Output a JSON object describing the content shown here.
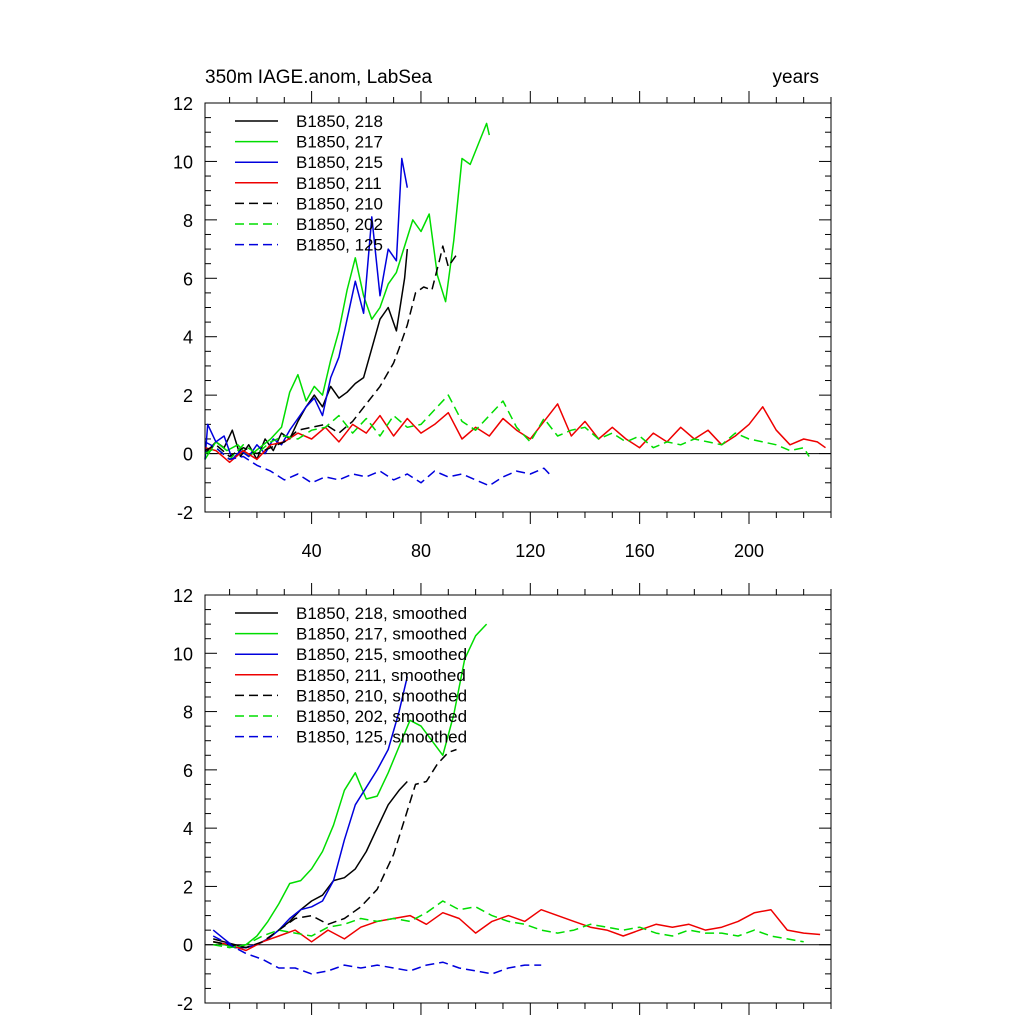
{
  "title": "350m IAGE.anom, LabSea",
  "units_label": "years",
  "colors": {
    "black": "#000000",
    "green": "#00dd00",
    "blue": "#0000dd",
    "red": "#ee0000"
  },
  "chart_data": [
    {
      "type": "line",
      "name": "raw",
      "title": "350m IAGE.anom, LabSea",
      "right_title": "years",
      "xlabel": "",
      "ylabel": "",
      "xlim": [
        1,
        230
      ],
      "ylim": [
        -2,
        12
      ],
      "xticks": [
        40,
        80,
        120,
        160,
        200
      ],
      "xtick_labels": [
        "40",
        "80",
        "120",
        "160",
        "200"
      ],
      "yticks": [
        -2,
        0,
        2,
        4,
        6,
        8,
        10,
        12
      ],
      "ytick_labels": [
        "-2",
        "0",
        "2",
        "4",
        "6",
        "8",
        "10",
        "12"
      ],
      "legend_position": "top-left",
      "series": [
        {
          "name": "B1850, 218",
          "color": "#000000",
          "dash": "solid",
          "x": [
            1,
            5,
            8,
            11,
            14,
            17,
            20,
            23,
            26,
            29,
            32,
            35,
            38,
            41,
            44,
            47,
            50,
            53,
            56,
            59,
            62,
            65,
            68,
            71,
            74,
            75
          ],
          "y": [
            0.0,
            0.4,
            0.2,
            0.8,
            -0.1,
            0.3,
            -0.2,
            0.5,
            0.1,
            0.7,
            0.5,
            1.1,
            1.6,
            2.0,
            1.6,
            2.3,
            1.9,
            2.1,
            2.4,
            2.6,
            3.6,
            4.6,
            5.0,
            4.2,
            6.0,
            7.0
          ]
        },
        {
          "name": "B1850, 217",
          "color": "#00dd00",
          "dash": "solid",
          "x": [
            1,
            5,
            9,
            13,
            17,
            21,
            25,
            29,
            32,
            35,
            38,
            41,
            44,
            47,
            50,
            53,
            56,
            59,
            62,
            65,
            68,
            71,
            74,
            77,
            80,
            83,
            86,
            89,
            92,
            95,
            98,
            101,
            104,
            105
          ],
          "y": [
            -0.2,
            0.4,
            0.1,
            0.3,
            -0.1,
            0.2,
            0.5,
            0.9,
            2.1,
            2.7,
            1.8,
            2.3,
            2.0,
            3.2,
            4.2,
            5.6,
            6.7,
            5.4,
            4.6,
            5.0,
            5.8,
            6.2,
            7.1,
            8.0,
            7.6,
            8.2,
            6.1,
            5.2,
            7.3,
            10.1,
            9.9,
            10.6,
            11.3,
            10.9
          ]
        },
        {
          "name": "B1850, 215",
          "color": "#0000dd",
          "dash": "solid",
          "x": [
            1,
            2,
            5,
            8,
            11,
            14,
            17,
            20,
            23,
            26,
            29,
            32,
            35,
            38,
            41,
            44,
            47,
            50,
            53,
            56,
            59,
            62,
            65,
            68,
            71,
            73,
            75
          ],
          "y": [
            -0.2,
            1.0,
            0.4,
            0.6,
            -0.2,
            0.1,
            -0.1,
            0.3,
            0.0,
            0.5,
            0.3,
            0.8,
            1.2,
            1.6,
            1.9,
            1.3,
            2.6,
            3.3,
            4.6,
            5.9,
            4.8,
            8.1,
            5.4,
            7.0,
            6.6,
            10.1,
            9.1
          ]
        },
        {
          "name": "B1850, 211",
          "color": "#ee0000",
          "dash": "solid",
          "x": [
            1,
            5,
            10,
            15,
            20,
            25,
            30,
            35,
            40,
            45,
            50,
            55,
            60,
            65,
            70,
            75,
            80,
            85,
            90,
            95,
            100,
            105,
            110,
            115,
            120,
            125,
            130,
            135,
            140,
            145,
            150,
            155,
            160,
            165,
            170,
            175,
            180,
            185,
            190,
            195,
            200,
            205,
            210,
            215,
            220,
            225,
            228
          ],
          "y": [
            0.2,
            0.1,
            -0.3,
            0.1,
            -0.2,
            0.3,
            0.4,
            0.7,
            0.5,
            0.9,
            0.4,
            1.0,
            0.7,
            1.3,
            0.6,
            1.2,
            0.7,
            1.0,
            1.4,
            0.5,
            0.9,
            0.6,
            1.2,
            0.8,
            0.5,
            1.1,
            1.7,
            0.6,
            1.1,
            0.5,
            0.9,
            0.5,
            0.2,
            0.7,
            0.4,
            0.9,
            0.5,
            0.8,
            0.3,
            0.6,
            1.0,
            1.6,
            0.8,
            0.3,
            0.5,
            0.4,
            0.2
          ]
        },
        {
          "name": "B1850, 210",
          "color": "#000000",
          "dash": "dashed",
          "x": [
            1,
            5,
            10,
            15,
            20,
            25,
            30,
            35,
            40,
            45,
            50,
            55,
            60,
            65,
            70,
            72,
            75,
            78,
            81,
            84,
            87,
            88,
            90,
            93
          ],
          "y": [
            0.1,
            0.3,
            -0.1,
            0.2,
            0.0,
            0.2,
            0.4,
            0.8,
            0.9,
            1.0,
            0.7,
            1.1,
            1.7,
            2.3,
            3.1,
            3.6,
            4.4,
            5.5,
            5.7,
            5.6,
            6.7,
            7.1,
            6.4,
            6.8
          ]
        },
        {
          "name": "B1850, 202",
          "color": "#00dd00",
          "dash": "dashed",
          "x": [
            1,
            5,
            10,
            15,
            20,
            25,
            30,
            35,
            40,
            45,
            50,
            55,
            60,
            65,
            70,
            75,
            80,
            85,
            90,
            95,
            100,
            105,
            110,
            115,
            120,
            125,
            130,
            135,
            140,
            145,
            150,
            155,
            160,
            165,
            170,
            175,
            180,
            185,
            190,
            195,
            200,
            205,
            210,
            215,
            220,
            222
          ],
          "y": [
            0.0,
            0.2,
            -0.2,
            0.3,
            0.0,
            0.4,
            0.6,
            0.5,
            0.8,
            0.9,
            1.3,
            0.7,
            1.2,
            0.6,
            1.3,
            0.9,
            1.0,
            1.5,
            2.0,
            1.1,
            0.8,
            1.3,
            1.8,
            0.9,
            0.4,
            1.2,
            0.6,
            0.8,
            0.9,
            0.5,
            0.7,
            0.4,
            0.6,
            0.2,
            0.4,
            0.3,
            0.5,
            0.4,
            0.3,
            0.7,
            0.5,
            0.4,
            0.3,
            0.1,
            0.2,
            -0.1
          ]
        },
        {
          "name": "B1850, 125",
          "color": "#0000dd",
          "dash": "dashed",
          "x": [
            1,
            5,
            10,
            15,
            20,
            25,
            30,
            35,
            40,
            45,
            50,
            55,
            60,
            65,
            70,
            75,
            80,
            85,
            90,
            95,
            100,
            105,
            110,
            115,
            120,
            125,
            127
          ],
          "y": [
            0.4,
            0.2,
            -0.2,
            -0.1,
            -0.4,
            -0.6,
            -0.9,
            -0.7,
            -1.0,
            -0.8,
            -0.9,
            -0.7,
            -0.8,
            -0.6,
            -0.9,
            -0.7,
            -1.0,
            -0.6,
            -0.8,
            -0.7,
            -0.9,
            -1.1,
            -0.8,
            -0.6,
            -0.7,
            -0.5,
            -0.7
          ]
        }
      ]
    },
    {
      "type": "line",
      "name": "smoothed",
      "title": "",
      "xlabel": "",
      "ylabel": "",
      "xlim": [
        1,
        230
      ],
      "ylim": [
        -2,
        12
      ],
      "xticks": [
        40,
        80,
        120,
        160,
        200
      ],
      "xtick_labels": [
        "",
        "",
        "",
        "",
        ""
      ],
      "yticks": [
        -2,
        0,
        2,
        4,
        6,
        8,
        10,
        12
      ],
      "ytick_labels": [
        "-2",
        "0",
        "2",
        "4",
        "6",
        "8",
        "10",
        "12"
      ],
      "legend_position": "top-left",
      "series": [
        {
          "name": "B1850, 218, smoothed",
          "color": "#000000",
          "dash": "solid",
          "x": [
            4,
            8,
            12,
            16,
            20,
            24,
            28,
            32,
            36,
            40,
            44,
            48,
            52,
            56,
            60,
            64,
            68,
            72,
            75
          ],
          "y": [
            0.2,
            0.1,
            0.0,
            -0.1,
            0.0,
            0.2,
            0.5,
            0.8,
            1.2,
            1.5,
            1.7,
            2.2,
            2.3,
            2.6,
            3.2,
            4.0,
            4.8,
            5.3,
            5.6
          ]
        },
        {
          "name": "B1850, 217, smoothed",
          "color": "#00dd00",
          "dash": "solid",
          "x": [
            4,
            8,
            12,
            16,
            20,
            24,
            28,
            32,
            36,
            40,
            44,
            48,
            52,
            56,
            60,
            64,
            68,
            72,
            76,
            80,
            84,
            88,
            92,
            96,
            100,
            104
          ],
          "y": [
            0.1,
            0.0,
            -0.1,
            0.0,
            0.3,
            0.8,
            1.4,
            2.1,
            2.2,
            2.6,
            3.2,
            4.1,
            5.3,
            5.9,
            5.0,
            5.1,
            5.9,
            6.8,
            7.7,
            7.5,
            7.0,
            6.5,
            7.9,
            9.8,
            10.6,
            11.0
          ]
        },
        {
          "name": "B1850, 215, smoothed",
          "color": "#0000dd",
          "dash": "solid",
          "x": [
            4,
            8,
            12,
            16,
            20,
            24,
            28,
            32,
            36,
            40,
            44,
            48,
            52,
            56,
            60,
            64,
            68,
            72,
            75
          ],
          "y": [
            0.5,
            0.2,
            -0.1,
            -0.1,
            0.0,
            0.2,
            0.5,
            0.9,
            1.2,
            1.3,
            1.5,
            2.2,
            3.6,
            4.8,
            5.4,
            6.0,
            6.7,
            8.0,
            9.2
          ]
        },
        {
          "name": "B1850, 211, smoothed",
          "color": "#ee0000",
          "dash": "solid",
          "x": [
            4,
            10,
            16,
            22,
            28,
            34,
            40,
            46,
            52,
            58,
            64,
            70,
            76,
            82,
            88,
            94,
            100,
            106,
            112,
            118,
            124,
            130,
            136,
            142,
            148,
            154,
            160,
            166,
            172,
            178,
            184,
            190,
            196,
            202,
            208,
            214,
            220,
            226
          ],
          "y": [
            0.1,
            0.0,
            -0.2,
            0.1,
            0.3,
            0.5,
            0.1,
            0.5,
            0.2,
            0.6,
            0.8,
            0.9,
            1.0,
            0.7,
            1.1,
            0.9,
            0.4,
            0.8,
            1.0,
            0.8,
            1.2,
            1.0,
            0.8,
            0.6,
            0.5,
            0.3,
            0.5,
            0.7,
            0.6,
            0.7,
            0.5,
            0.6,
            0.8,
            1.1,
            1.2,
            0.5,
            0.4,
            0.35
          ]
        },
        {
          "name": "B1850, 210, smoothed",
          "color": "#000000",
          "dash": "dashed",
          "x": [
            4,
            10,
            16,
            22,
            28,
            34,
            40,
            46,
            52,
            58,
            64,
            70,
            74,
            78,
            82,
            86,
            90,
            93
          ],
          "y": [
            0.1,
            0.0,
            -0.1,
            0.1,
            0.5,
            0.9,
            1.0,
            0.7,
            0.9,
            1.3,
            1.9,
            3.1,
            4.3,
            5.5,
            5.6,
            6.2,
            6.6,
            6.7
          ]
        },
        {
          "name": "B1850, 202, smoothed",
          "color": "#00dd00",
          "dash": "dashed",
          "x": [
            4,
            10,
            16,
            22,
            28,
            34,
            40,
            46,
            52,
            58,
            64,
            70,
            76,
            82,
            88,
            94,
            100,
            106,
            112,
            118,
            124,
            130,
            136,
            142,
            148,
            154,
            160,
            166,
            172,
            178,
            184,
            190,
            196,
            202,
            208,
            214,
            220
          ],
          "y": [
            0.0,
            -0.1,
            0.0,
            0.3,
            0.5,
            0.4,
            0.3,
            0.6,
            0.7,
            0.9,
            0.8,
            0.9,
            0.8,
            1.1,
            1.5,
            1.2,
            1.3,
            1.0,
            0.8,
            0.7,
            0.5,
            0.4,
            0.5,
            0.7,
            0.6,
            0.5,
            0.6,
            0.4,
            0.3,
            0.5,
            0.4,
            0.4,
            0.3,
            0.5,
            0.3,
            0.2,
            0.1
          ]
        },
        {
          "name": "B1850, 125, smoothed",
          "color": "#0000dd",
          "dash": "dashed",
          "x": [
            4,
            10,
            16,
            22,
            28,
            34,
            40,
            46,
            52,
            58,
            64,
            70,
            76,
            82,
            88,
            94,
            100,
            106,
            112,
            118,
            124
          ],
          "y": [
            0.3,
            0.0,
            -0.3,
            -0.5,
            -0.8,
            -0.8,
            -1.0,
            -0.9,
            -0.7,
            -0.8,
            -0.7,
            -0.8,
            -0.9,
            -0.7,
            -0.6,
            -0.8,
            -0.9,
            -1.0,
            -0.8,
            -0.7,
            -0.7
          ]
        }
      ]
    }
  ]
}
